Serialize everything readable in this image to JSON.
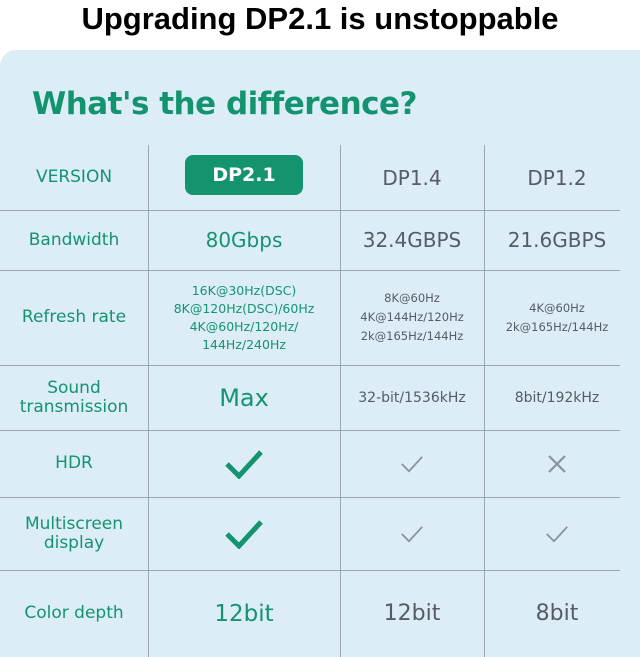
{
  "headline": "Upgrading DP2.1 is unstoppable",
  "title": "What's the difference?",
  "colors": {
    "accent": "#14946e",
    "background": "#dcedf8",
    "muted": "#555c63"
  },
  "columns": [
    "VERSION",
    "DP2.1",
    "DP1.4",
    "DP1.2"
  ],
  "rows": [
    {
      "label": "Bandwidth",
      "values": [
        "80Gbps",
        "32.4GBPS",
        "21.6GBPS"
      ]
    },
    {
      "label": "Refresh rate",
      "values": [
        [
          "16K@30Hz(DSC)",
          "8K@120Hz(DSC)/60Hz",
          "4K@60Hz/120Hz/",
          "144Hz/240Hz"
        ],
        [
          "8K@60Hz",
          "4K@144Hz/120Hz",
          "2k@165Hz/144Hz"
        ],
        [
          "4K@60Hz",
          "2k@165Hz/144Hz"
        ]
      ]
    },
    {
      "label": [
        "Sound",
        "transmission"
      ],
      "values": [
        "Max",
        "32-bit/1536kHz",
        "8bit/192kHz"
      ]
    },
    {
      "label": "HDR",
      "icons": [
        "check-icon",
        "check-icon",
        "cross-icon"
      ]
    },
    {
      "label": [
        "Multiscreen",
        "display"
      ],
      "icons": [
        "check-icon",
        "check-icon",
        "check-icon"
      ]
    },
    {
      "label": "Color depth",
      "values": [
        "12bit",
        "12bit",
        "8bit"
      ]
    }
  ]
}
